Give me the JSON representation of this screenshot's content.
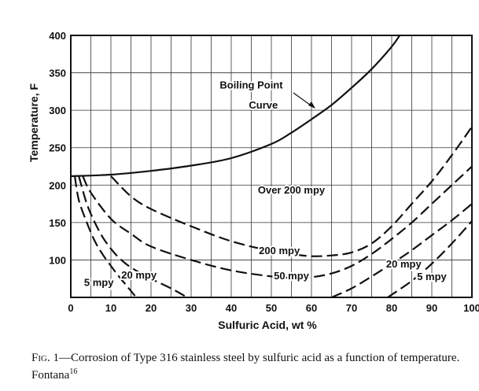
{
  "chart_data": {
    "type": "line",
    "xlabel": "Sulfuric Acid, wt %",
    "ylabel": "Temperature, F",
    "xlim": [
      0,
      100
    ],
    "ylim": [
      50,
      400
    ],
    "x_ticks": [
      "0",
      "10",
      "20",
      "30",
      "40",
      "50",
      "60",
      "70",
      "80",
      "90",
      "100"
    ],
    "y_ticks": [
      "100",
      "150",
      "200",
      "250",
      "300",
      "350",
      "400"
    ],
    "grid": true,
    "series": [
      {
        "name": "Boiling Point Curve",
        "style": "solid",
        "x": [
          0,
          10,
          20,
          30,
          40,
          50,
          55,
          60,
          65,
          70,
          75,
          80,
          82
        ],
        "y": [
          212,
          214,
          219,
          226,
          236,
          255,
          270,
          288,
          307,
          330,
          355,
          385,
          400
        ]
      },
      {
        "name": "200 mpy",
        "style": "dashed",
        "x": [
          10,
          15,
          20,
          30,
          40,
          50,
          55,
          60,
          65,
          70,
          75,
          80,
          85,
          90,
          95,
          100
        ],
        "y": [
          212,
          185,
          168,
          145,
          125,
          112,
          108,
          105,
          106,
          110,
          122,
          145,
          175,
          205,
          240,
          278
        ]
      },
      {
        "name": "50 mpy",
        "style": "dashed",
        "x": [
          3,
          5,
          10,
          15,
          20,
          30,
          40,
          50,
          55,
          60,
          65,
          70,
          75,
          80,
          85,
          90,
          95,
          100
        ],
        "y": [
          212,
          190,
          155,
          135,
          118,
          100,
          86,
          78,
          76,
          77,
          82,
          92,
          108,
          128,
          150,
          175,
          200,
          225
        ]
      },
      {
        "name": "20 mpy",
        "style": "dashed",
        "x": [
          2,
          4,
          6,
          8,
          10,
          12,
          15,
          20,
          25,
          29
        ],
        "y": [
          212,
          175,
          150,
          130,
          115,
          103,
          90,
          75,
          62,
          50
        ]
      },
      {
        "name": "20 mpy",
        "style": "dashed",
        "x": [
          65,
          70,
          75,
          80,
          85,
          90,
          95,
          100
        ],
        "y": [
          50,
          62,
          78,
          95,
          113,
          133,
          153,
          175
        ]
      },
      {
        "name": "5 mpy",
        "style": "dashed",
        "x": [
          1,
          2,
          4,
          6,
          8,
          10,
          12,
          14,
          16
        ],
        "y": [
          212,
          180,
          150,
          125,
          107,
          92,
          78,
          65,
          52
        ]
      },
      {
        "name": "5 mpy",
        "style": "dashed",
        "x": [
          79,
          85,
          90,
          95,
          100
        ],
        "y": [
          50,
          72,
          95,
          122,
          152
        ]
      }
    ],
    "annotations": [
      {
        "text": "Boiling Point",
        "x": 45,
        "y": 329
      },
      {
        "text": "Curve",
        "x": 48,
        "y": 302
      },
      {
        "text": "Over 200 mpy",
        "x": 55,
        "y": 189
      },
      {
        "text": "200 mpy",
        "x": 52,
        "y": 108
      },
      {
        "text": "50 mpy",
        "x": 55,
        "y": 74
      },
      {
        "text": "20 mpy",
        "x": 17,
        "y": 75
      },
      {
        "text": "5 mpy",
        "x": 7,
        "y": 65
      },
      {
        "text": "20 mpy",
        "x": 83,
        "y": 90
      },
      {
        "text": "5 mpy",
        "x": 90,
        "y": 73
      }
    ]
  },
  "caption": {
    "fig_label": "Fig. 1",
    "text": "—Corrosion of Type 316 stainless steel by sulfuric acid as a function of temperature. Fontana",
    "ref": "16"
  }
}
